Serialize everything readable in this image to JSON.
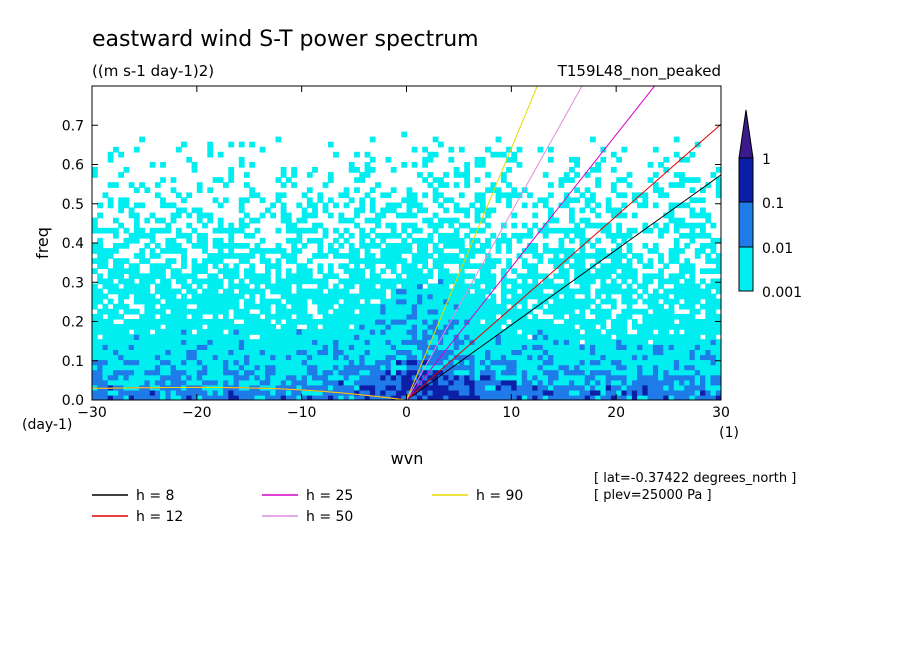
{
  "chart_data": {
    "type": "heatmap",
    "title": "eastward wind S-T power spectrum",
    "units": "((m s-1 day-1)2)",
    "experiment": "T159L48_non_peaked",
    "xlabel": "wvn",
    "xunits": "(1)",
    "ylabel": "freq",
    "yunits": "(day-1)",
    "xlim": [
      -30,
      30
    ],
    "ylim": [
      0,
      0.8
    ],
    "xticks": [
      -30,
      -20,
      -10,
      0,
      10,
      20,
      30
    ],
    "yticks": [
      0.0,
      0.1,
      0.2,
      0.3,
      0.4,
      0.5,
      0.6,
      0.7
    ],
    "ytick_labels": [
      "0.0",
      "0.1",
      "0.2",
      "0.3",
      "0.4",
      "0.5",
      "0.6",
      "0.7"
    ],
    "colorbar": {
      "levels": [
        0.001,
        0.01,
        0.1,
        1
      ],
      "labels": [
        "0.001",
        "0.01",
        "0.1",
        "1"
      ],
      "colors": [
        "#00eef0",
        "#1f7be8",
        "#0d1ea8",
        "#3a1a8c"
      ]
    },
    "dispersion_curves": [
      {
        "label": "h =  8",
        "h": 8,
        "color": "#000000"
      },
      {
        "label": "h = 12",
        "h": 12,
        "color": "#e00000"
      },
      {
        "label": "h = 25",
        "h": 25,
        "color": "#d400c8"
      },
      {
        "label": "h = 50",
        "h": 50,
        "color": "#e08ce0"
      },
      {
        "label": "h = 90",
        "h": 90,
        "color": "#e8d800"
      }
    ],
    "annotations": [
      "[ lat=-0.37422 degrees_north ]",
      "[ plev=25000 Pa ]"
    ]
  }
}
